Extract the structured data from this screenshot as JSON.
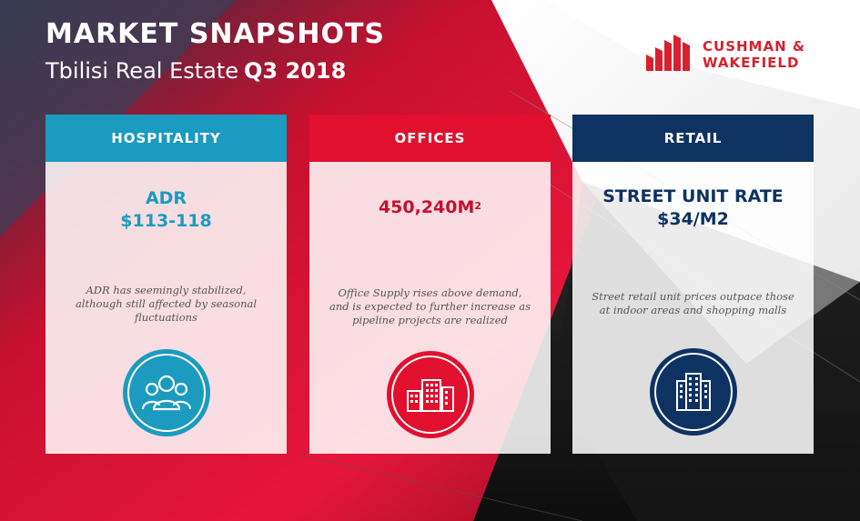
{
  "header": {
    "title": "MARKET SNAPSHOTS",
    "subtitle": "Tbilisi Real Estate",
    "period": "Q3 2018"
  },
  "logo": {
    "line1": "CUSHMAN &",
    "line2": "WAKEFIELD",
    "icon": "cushman-wakefield-logo-icon"
  },
  "colors": {
    "hospitality": "#1a9bbf",
    "offices": "#e0102e",
    "retail": "#0e3262",
    "brand_red": "#d9202e"
  },
  "cards": [
    {
      "header": "HOSPITALITY",
      "metric_line1": "ADR",
      "metric_line2": "$113-118",
      "description": "ADR has seemingly stabilized, although still affected by seasonal fluctuations",
      "icon": "people-icon"
    },
    {
      "header": "OFFICES",
      "metric_main": "450,240M",
      "metric_sup": "2",
      "description": "Office Supply rises above demand, and is expected to further increase as pipeline projects are realized",
      "icon": "office-buildings-icon"
    },
    {
      "header": "RETAIL",
      "metric_line1": "STREET UNIT RATE",
      "metric_line2": "$34/M2",
      "description": "Street retail unit prices outpace those at indoor areas and shopping malls",
      "icon": "retail-building-icon"
    }
  ]
}
